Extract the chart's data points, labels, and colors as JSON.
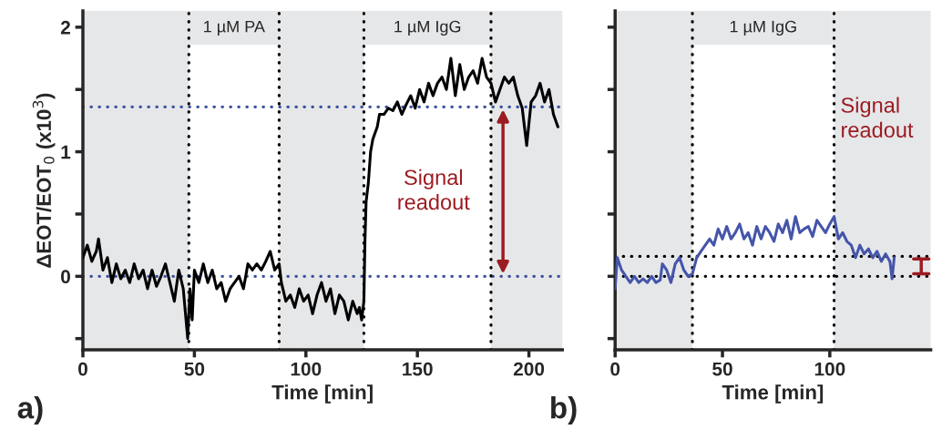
{
  "chart_data": [
    {
      "type": "line",
      "ylabel": "ΔEOT/EOT$_{0}$ (x10$^{3}$)",
      "xlabel": "Time [min]",
      "xlim": [
        0,
        215
      ],
      "xticks": [
        0,
        50,
        100,
        150,
        200
      ],
      "ylim": [
        -0.59,
        2.13
      ],
      "yticks": [
        {
          "value": -0.5,
          "label": null
        },
        0,
        {
          "value": 0.5,
          "label": null
        },
        1,
        {
          "value": 1.5,
          "label": null
        },
        2
      ],
      "grid": false,
      "legend": false,
      "marker": "none",
      "line_style": "solid",
      "series": [
        {
          "color": "#000000",
          "x": [
            0,
            2,
            4,
            6,
            7,
            9,
            11,
            13,
            15,
            17,
            19,
            21,
            23,
            25,
            27,
            29,
            31,
            33,
            35,
            37,
            39,
            41,
            43,
            45,
            46,
            47,
            48,
            49,
            50,
            52,
            54,
            56,
            58,
            60,
            62,
            64,
            66,
            68,
            70,
            72,
            74,
            76,
            78,
            80,
            82,
            84,
            86,
            88,
            89,
            91,
            93,
            95,
            97,
            99,
            101,
            103,
            105,
            107,
            109,
            111,
            113,
            115,
            117,
            119,
            121,
            123,
            124,
            125,
            126,
            126.5,
            127,
            128,
            129,
            130,
            131,
            132,
            133,
            135,
            137,
            139,
            141,
            143,
            145,
            147,
            149,
            151,
            153,
            155,
            157,
            159,
            161,
            163,
            165,
            167,
            169,
            171,
            173,
            175,
            177,
            179,
            181,
            183,
            185,
            187,
            189,
            191,
            193,
            195,
            197,
            199,
            201,
            203,
            205,
            207,
            209,
            211,
            213
          ],
          "values": [
            0.15,
            0.25,
            0.12,
            0.2,
            0.3,
            0.05,
            0.15,
            -0.05,
            0.1,
            -0.02,
            0.05,
            -0.05,
            0.1,
            -0.02,
            0.05,
            -0.1,
            0.05,
            -0.08,
            0.0,
            0.1,
            -0.05,
            -0.2,
            0.05,
            -0.1,
            -0.3,
            -0.5,
            -0.1,
            -0.35,
            0.05,
            -0.05,
            0.1,
            -0.05,
            0.05,
            -0.1,
            -0.05,
            -0.2,
            -0.1,
            -0.05,
            0.0,
            -0.1,
            0.1,
            0.05,
            0.1,
            0.05,
            0.12,
            0.2,
            0.05,
            0.1,
            -0.05,
            -0.2,
            -0.15,
            -0.25,
            -0.1,
            -0.2,
            -0.15,
            -0.3,
            -0.15,
            -0.05,
            -0.2,
            -0.1,
            -0.3,
            -0.15,
            -0.2,
            -0.35,
            -0.2,
            -0.3,
            -0.25,
            -0.35,
            -0.2,
            0.3,
            0.6,
            0.75,
            1.0,
            1.1,
            1.15,
            1.2,
            1.3,
            1.3,
            1.35,
            1.33,
            1.4,
            1.3,
            1.38,
            1.45,
            1.35,
            1.5,
            1.4,
            1.55,
            1.45,
            1.55,
            1.6,
            1.5,
            1.75,
            1.45,
            1.7,
            1.5,
            1.6,
            1.65,
            1.55,
            1.75,
            1.6,
            1.55,
            1.4,
            1.5,
            1.6,
            1.55,
            1.6,
            1.45,
            1.35,
            1.05,
            1.4,
            1.45,
            1.55,
            1.4,
            1.5,
            1.3,
            1.2
          ]
        }
      ],
      "ref_lines": [
        {
          "axis": "y",
          "value": 0,
          "color": "#3b4fa0",
          "line_style": "dotted"
        },
        {
          "axis": "y",
          "value": 1.36,
          "color": "#3b4fa0",
          "line_style": "dotted"
        },
        {
          "axis": "x",
          "value": 47.5,
          "color": "#000000",
          "line_style": "dotted"
        },
        {
          "axis": "x",
          "value": 88,
          "color": "#000000",
          "line_style": "dotted"
        },
        {
          "axis": "x",
          "value": 126,
          "color": "#000000",
          "line_style": "dotted"
        },
        {
          "axis": "x",
          "value": 183,
          "color": "#000000",
          "line_style": "dotted"
        }
      ],
      "bands": [
        {
          "axis": "x",
          "from": 47.5,
          "to": 88,
          "label": "1 µM PA",
          "color": "#ffffff"
        },
        {
          "axis": "x",
          "from": 126,
          "to": 183,
          "label": "1 µM IgG",
          "color": "#ffffff"
        }
      ],
      "annotations": [
        "Signal readout",
        "a)"
      ]
    },
    {
      "type": "line",
      "xlabel": "Time [min]",
      "xlim": [
        0,
        147
      ],
      "xticks": [
        0,
        50,
        100
      ],
      "ylim": [
        -0.59,
        2.13
      ],
      "yticks": [
        {
          "value": -0.5,
          "label": null
        },
        {
          "value": 0,
          "label": null
        },
        {
          "value": 0.5,
          "label": null
        },
        {
          "value": 1,
          "label": null
        },
        {
          "value": 1.5,
          "label": null
        },
        {
          "value": 2,
          "label": null
        }
      ],
      "tick_labels": "x",
      "grid": false,
      "legend": false,
      "marker": "none",
      "line_style": "solid",
      "series": [
        {
          "color": "#4455aa",
          "x": [
            0,
            1,
            3,
            5,
            7,
            9,
            11,
            13,
            15,
            17,
            19,
            21,
            22,
            24,
            26,
            28,
            30,
            32,
            34,
            36,
            38,
            40,
            42,
            44,
            46,
            48,
            50,
            52,
            54,
            56,
            58,
            60,
            62,
            64,
            66,
            68,
            70,
            72,
            74,
            76,
            78,
            80,
            82,
            84,
            86,
            88,
            90,
            92,
            94,
            96,
            98,
            100,
            102,
            104,
            106,
            108,
            110,
            112,
            114,
            116,
            118,
            120,
            122,
            124,
            126,
            128,
            129,
            130
          ],
          "values": [
            -0.1,
            0.15,
            0.05,
            0.0,
            -0.05,
            0.0,
            -0.05,
            -0.02,
            -0.05,
            0.0,
            -0.05,
            -0.03,
            0.1,
            0.05,
            -0.05,
            0.1,
            0.15,
            0.05,
            0.0,
            0.02,
            0.15,
            0.2,
            0.25,
            0.3,
            0.25,
            0.38,
            0.3,
            0.4,
            0.3,
            0.35,
            0.42,
            0.3,
            0.35,
            0.25,
            0.4,
            0.3,
            0.4,
            0.35,
            0.28,
            0.42,
            0.35,
            0.45,
            0.3,
            0.48,
            0.35,
            0.38,
            0.4,
            0.32,
            0.45,
            0.4,
            0.35,
            0.42,
            0.48,
            0.3,
            0.35,
            0.28,
            0.25,
            0.15,
            0.25,
            0.18,
            0.22,
            0.15,
            0.2,
            0.12,
            0.18,
            0.12,
            -0.02,
            0.15
          ]
        }
      ],
      "ref_lines": [
        {
          "axis": "y",
          "value": 0,
          "color": "#000000",
          "line_style": "dotted"
        },
        {
          "axis": "y",
          "value": 0.16,
          "color": "#000000",
          "line_style": "dotted"
        },
        {
          "axis": "x",
          "value": 36,
          "color": "#000000",
          "line_style": "dotted"
        },
        {
          "axis": "x",
          "value": 102,
          "color": "#000000",
          "line_style": "dotted"
        }
      ],
      "bands": [
        {
          "axis": "x",
          "from": 36,
          "to": 102,
          "label": "1 µM IgG",
          "color": "#ffffff"
        }
      ],
      "annotations": [
        "Signal readout",
        "b)"
      ]
    }
  ]
}
